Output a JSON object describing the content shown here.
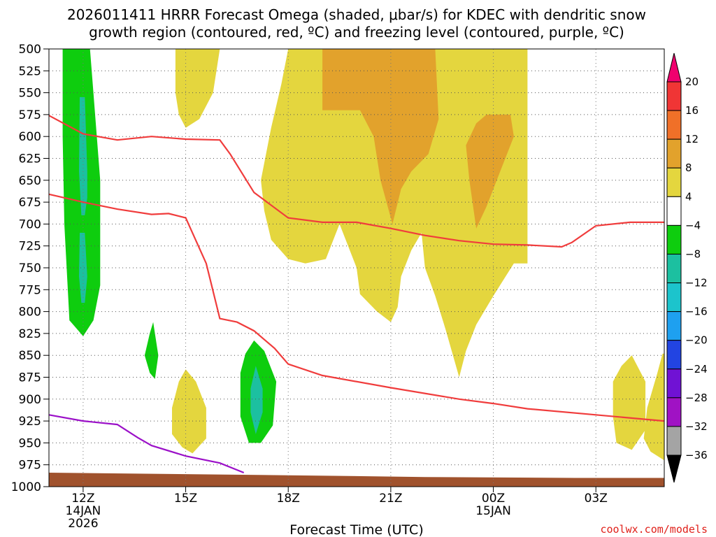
{
  "chart_data": {
    "type": "contour",
    "title_line1": "2026011411 HRRR Forecast Omega (shaded, μbar/s) for KDEC with dendritic snow",
    "title_line2": "growth region (contoured, red, ºC) and freezing level (contoured, purple, ºC)",
    "xlabel": "Forecast Time (UTC)",
    "credit": "coolwx.com/models",
    "x_range_hours": [
      11,
      29
    ],
    "y_range_hpa": [
      500,
      1000
    ],
    "y_ticks": [
      500,
      525,
      550,
      575,
      600,
      625,
      650,
      675,
      700,
      725,
      750,
      775,
      800,
      825,
      850,
      875,
      900,
      925,
      950,
      975,
      1000
    ],
    "x_ticks": [
      {
        "hour": 12,
        "label": "12Z",
        "sub1": "14JAN",
        "sub2": "2026"
      },
      {
        "hour": 15,
        "label": "15Z",
        "sub1": "",
        "sub2": ""
      },
      {
        "hour": 18,
        "label": "18Z",
        "sub1": "",
        "sub2": ""
      },
      {
        "hour": 21,
        "label": "21Z",
        "sub1": "",
        "sub2": ""
      },
      {
        "hour": 24,
        "label": "00Z",
        "sub1": "15JAN",
        "sub2": ""
      },
      {
        "hour": 27,
        "label": "03Z",
        "sub1": "",
        "sub2": ""
      }
    ],
    "grid": true,
    "colorbar": {
      "levels": [
        20,
        16,
        12,
        8,
        4,
        -4,
        -8,
        -12,
        -16,
        -20,
        -24,
        -28,
        -32,
        -36
      ],
      "level_labels": [
        "20",
        "16",
        "12",
        "8",
        "4",
        "−4",
        "−8",
        "−12",
        "−16",
        "−20",
        "−24",
        "−28",
        "−32",
        "−36"
      ],
      "colors": [
        "#f0006e",
        "#f03535",
        "#f07028",
        "#e2a22c",
        "#e4d63e",
        "#ffffff",
        "#0ecd0e",
        "#1cc0a0",
        "#1cc4cc",
        "#1ea0f0",
        "#2244e2",
        "#7012d4",
        "#a012c4",
        "#a4a4a4",
        "#000000"
      ]
    },
    "terrain_color": "#a0522d",
    "terrain": [
      [
        11,
        984
      ],
      [
        18,
        987
      ],
      [
        22,
        989
      ],
      [
        26.4,
        990
      ],
      [
        29,
        990
      ]
    ],
    "red_isotherm_upper": [
      [
        11,
        576
      ],
      [
        12,
        597
      ],
      [
        13,
        604
      ],
      [
        14,
        600
      ],
      [
        15,
        603
      ],
      [
        16,
        604
      ],
      [
        16.3,
        620
      ],
      [
        17,
        664
      ],
      [
        18,
        693
      ],
      [
        19,
        698
      ],
      [
        20,
        698
      ],
      [
        21,
        705
      ],
      [
        22,
        713
      ],
      [
        23,
        719
      ],
      [
        24,
        723
      ],
      [
        25,
        724
      ],
      [
        26,
        726
      ],
      [
        26.3,
        721
      ],
      [
        27,
        702
      ],
      [
        28,
        698
      ],
      [
        29,
        698
      ]
    ],
    "red_isotherm_lower": [
      [
        11,
        666
      ],
      [
        12,
        675
      ],
      [
        13,
        683
      ],
      [
        14,
        689
      ],
      [
        14.5,
        688
      ],
      [
        15,
        693
      ],
      [
        15.6,
        745
      ],
      [
        16,
        808
      ],
      [
        16.5,
        812
      ],
      [
        17,
        822
      ],
      [
        17.6,
        842
      ],
      [
        18,
        860
      ],
      [
        19,
        873
      ],
      [
        21,
        887
      ],
      [
        23,
        900
      ],
      [
        24,
        905
      ],
      [
        25,
        911
      ],
      [
        27,
        918
      ],
      [
        29,
        925
      ]
    ],
    "purple_freezing_level": [
      [
        11,
        918
      ],
      [
        12,
        925
      ],
      [
        13,
        929
      ],
      [
        13.6,
        944
      ],
      [
        14,
        953
      ],
      [
        15,
        965
      ],
      [
        16,
        973
      ],
      [
        16.7,
        984
      ]
    ],
    "omega_regions": [
      {
        "level": -4,
        "points": [
          [
            11.4,
            500
          ],
          [
            12.2,
            500
          ],
          [
            12.3,
            550
          ],
          [
            12.5,
            650
          ],
          [
            12.5,
            770
          ],
          [
            12.3,
            810
          ],
          [
            12.0,
            828
          ],
          [
            11.6,
            810
          ],
          [
            11.45,
            700
          ],
          [
            11.4,
            600
          ]
        ]
      },
      {
        "level": -8,
        "points": [
          [
            11.9,
            555
          ],
          [
            12.05,
            555
          ],
          [
            12.12,
            640
          ],
          [
            12.12,
            670
          ],
          [
            12.05,
            690
          ],
          [
            11.95,
            690
          ],
          [
            11.88,
            640
          ]
        ]
      },
      {
        "level": -8,
        "points": [
          [
            11.9,
            710
          ],
          [
            12.05,
            710
          ],
          [
            12.12,
            760
          ],
          [
            12.05,
            790
          ],
          [
            11.95,
            790
          ],
          [
            11.88,
            760
          ]
        ]
      },
      {
        "level": -4,
        "points": [
          [
            13.95,
            825
          ],
          [
            14.05,
            812
          ],
          [
            14.2,
            850
          ],
          [
            14.1,
            877
          ],
          [
            13.95,
            870
          ],
          [
            13.8,
            850
          ]
        ]
      },
      {
        "level": -4,
        "points": [
          [
            17.0,
            833
          ],
          [
            17.3,
            845
          ],
          [
            17.65,
            880
          ],
          [
            17.55,
            930
          ],
          [
            17.2,
            950
          ],
          [
            16.85,
            950
          ],
          [
            16.6,
            920
          ],
          [
            16.6,
            870
          ],
          [
            16.75,
            848
          ]
        ]
      },
      {
        "level": -8,
        "points": [
          [
            17.05,
            862
          ],
          [
            17.25,
            888
          ],
          [
            17.25,
            915
          ],
          [
            17.05,
            940
          ],
          [
            16.9,
            915
          ],
          [
            16.9,
            888
          ]
        ]
      },
      {
        "level": 4,
        "points": [
          [
            14.7,
            500
          ],
          [
            16.0,
            500
          ],
          [
            15.8,
            550
          ],
          [
            15.4,
            580
          ],
          [
            15.0,
            590
          ],
          [
            14.8,
            575
          ],
          [
            14.7,
            550
          ]
        ]
      },
      {
        "level": 4,
        "points": [
          [
            15.0,
            866
          ],
          [
            15.3,
            880
          ],
          [
            15.6,
            910
          ],
          [
            15.6,
            945
          ],
          [
            15.2,
            962
          ],
          [
            14.9,
            955
          ],
          [
            14.6,
            940
          ],
          [
            14.6,
            910
          ],
          [
            14.8,
            880
          ]
        ]
      },
      {
        "level": 4,
        "points": [
          [
            18.0,
            500
          ],
          [
            25.0,
            500
          ],
          [
            25.0,
            745
          ],
          [
            24.6,
            745
          ],
          [
            24.0,
            782
          ],
          [
            23.5,
            815
          ],
          [
            23.2,
            845
          ],
          [
            23.0,
            875
          ],
          [
            22.6,
            820
          ],
          [
            22.3,
            782
          ],
          [
            22.0,
            750
          ],
          [
            21.9,
            710
          ],
          [
            21.6,
            730
          ],
          [
            21.3,
            760
          ],
          [
            21.2,
            795
          ],
          [
            21.0,
            812
          ],
          [
            20.6,
            800
          ],
          [
            20.1,
            780
          ],
          [
            20.0,
            750
          ],
          [
            19.5,
            700
          ],
          [
            19.3,
            720
          ],
          [
            19.1,
            740
          ],
          [
            18.5,
            745
          ],
          [
            18.0,
            740
          ],
          [
            17.5,
            718
          ],
          [
            17.3,
            685
          ],
          [
            17.2,
            650
          ],
          [
            17.5,
            590
          ],
          [
            17.8,
            540
          ]
        ]
      },
      {
        "level": 4,
        "points": [
          [
            28.05,
            850
          ],
          [
            28.45,
            880
          ],
          [
            28.45,
            935
          ],
          [
            28.05,
            958
          ],
          [
            27.6,
            950
          ],
          [
            27.5,
            920
          ],
          [
            27.5,
            880
          ],
          [
            27.75,
            862
          ]
        ]
      },
      {
        "level": 4,
        "points": [
          [
            28.95,
            848
          ],
          [
            29.0,
            848
          ],
          [
            29.0,
            970
          ],
          [
            28.6,
            960
          ],
          [
            28.4,
            945
          ],
          [
            28.5,
            910
          ],
          [
            28.8,
            870
          ]
        ]
      },
      {
        "level": 8,
        "points": [
          [
            19.0,
            500
          ],
          [
            22.3,
            500
          ],
          [
            22.4,
            580
          ],
          [
            22.1,
            620
          ],
          [
            21.6,
            640
          ],
          [
            21.3,
            660
          ],
          [
            21.05,
            700
          ],
          [
            20.7,
            650
          ],
          [
            20.5,
            600
          ],
          [
            20.1,
            570
          ],
          [
            19.0,
            570
          ]
        ]
      },
      {
        "level": 8,
        "points": [
          [
            23.8,
            575
          ],
          [
            24.5,
            575
          ],
          [
            24.6,
            600
          ],
          [
            24.2,
            640
          ],
          [
            23.8,
            680
          ],
          [
            23.5,
            705
          ],
          [
            23.3,
            650
          ],
          [
            23.2,
            610
          ],
          [
            23.5,
            585
          ]
        ]
      }
    ]
  }
}
